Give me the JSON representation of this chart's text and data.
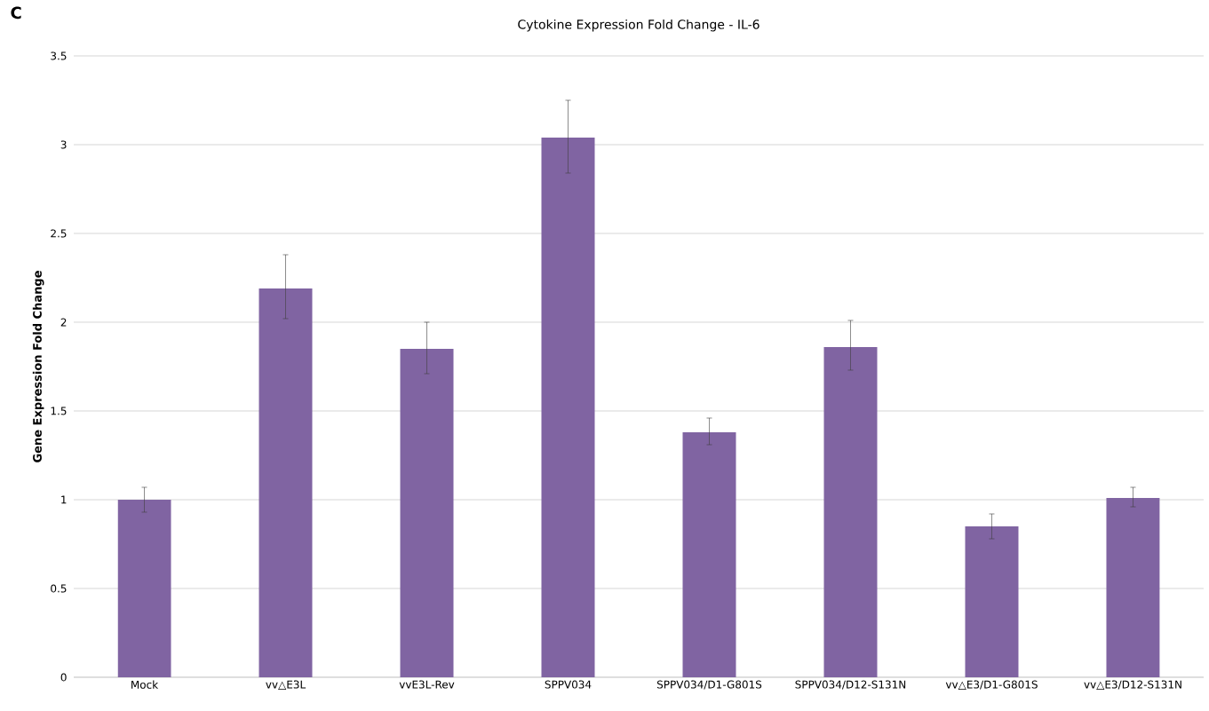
{
  "chart_data": {
    "type": "bar",
    "title": "Cytokine Expression Fold Change - IL-6",
    "ylabel": "Gene Expression Fold Change",
    "annotations": [
      "C"
    ],
    "categories": [
      "Mock",
      "vv△E3L",
      "vvE3L-Rev",
      "SPPV034",
      "SPPV034/D1-G801S",
      "SPPV034/D12-S131N",
      "vv△E3/D1-G801S",
      "vv△E3/D12-S131N"
    ],
    "values": [
      1.0,
      2.19,
      1.85,
      3.04,
      1.38,
      1.86,
      0.85,
      1.01
    ],
    "errors": [
      [
        0.93,
        1.07
      ],
      [
        2.02,
        2.38
      ],
      [
        1.71,
        2.0
      ],
      [
        2.84,
        3.25
      ],
      [
        1.31,
        1.46
      ],
      [
        1.73,
        2.01
      ],
      [
        0.78,
        0.92
      ],
      [
        0.96,
        1.07
      ]
    ],
    "color": "#8064a2",
    "ylim": [
      0,
      3.5
    ],
    "yticks": [
      0,
      0.5,
      1,
      1.5,
      2,
      2.5,
      3,
      3.5
    ],
    "grid": "y"
  }
}
